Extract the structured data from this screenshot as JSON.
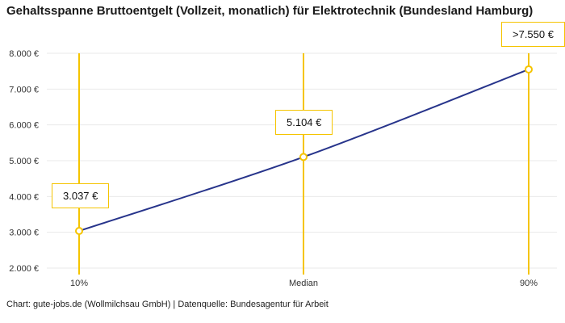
{
  "title": "Gehaltsspanne Bruttoentgelt (Vollzeit, monatlich) für Elektrotechnik (Bundesland Hamburg)",
  "footer": "Chart: gute-jobs.de (Wollmilchsau GmbH) | Datenquelle: Bundesagentur für Arbeit",
  "chart_data": {
    "type": "line",
    "title": "Gehaltsspanne Bruttoentgelt (Vollzeit, monatlich) für Elektrotechnik (Bundesland Hamburg)",
    "categories": [
      "10%",
      "Median",
      "90%"
    ],
    "series": [
      {
        "name": "Bruttoentgelt (Vollzeit, monatlich)",
        "values": [
          3037,
          5104,
          7550
        ]
      }
    ],
    "point_labels": [
      "3.037 €",
      "5.104 €",
      ">7.550 €"
    ],
    "ylim": [
      2000,
      8000
    ],
    "yticks": [
      2000,
      3000,
      4000,
      5000,
      6000,
      7000,
      8000
    ],
    "ytick_labels": [
      "2.000 €",
      "3.000 €",
      "4.000 €",
      "5.000 €",
      "6.000 €",
      "7.000 €",
      "8.000 €"
    ],
    "grid": true,
    "legend": "none",
    "colors": {
      "line": "#27348b",
      "accent": "#f5c400",
      "grid": "#e9e9e9",
      "text": "#333333"
    }
  }
}
